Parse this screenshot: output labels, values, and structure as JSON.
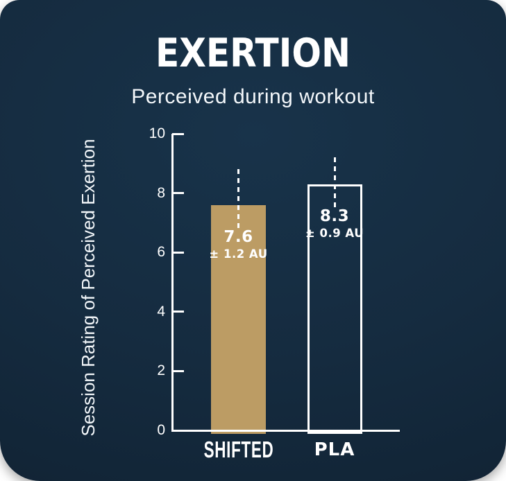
{
  "colors": {
    "card_background_top": "#18334a",
    "card_background_bottom": "#0f2030",
    "bar_gold": "#bc9c64",
    "axis_and_text_white": "#ffffff"
  },
  "chart_data": {
    "type": "bar",
    "title": "EXERTION",
    "subtitle": "Perceived during workout",
    "ylabel": "Session Rating of Perceived Exertion",
    "xlabel": "",
    "ylim": [
      0,
      10
    ],
    "yticks": [
      0,
      2,
      4,
      6,
      8,
      10
    ],
    "grid": false,
    "legend_position": "none",
    "categories": [
      "SHIFTED",
      "PLA"
    ],
    "values": [
      7.6,
      8.3
    ],
    "errors": [
      1.2,
      0.9
    ],
    "error_unit": "AU",
    "error_bar_style": "dashed-line",
    "bars": [
      {
        "category": "SHIFTED",
        "value": 7.6,
        "error": 1.2,
        "value_label": "7.6",
        "error_label": "± 1.2 AU",
        "style": "filled",
        "fill_color": "#bc9c64"
      },
      {
        "category": "PLA",
        "value": 8.3,
        "error": 0.9,
        "value_label": "8.3",
        "error_label": "± 0.9 AU",
        "style": "outlined",
        "outline_color": "#ffffff"
      }
    ]
  }
}
